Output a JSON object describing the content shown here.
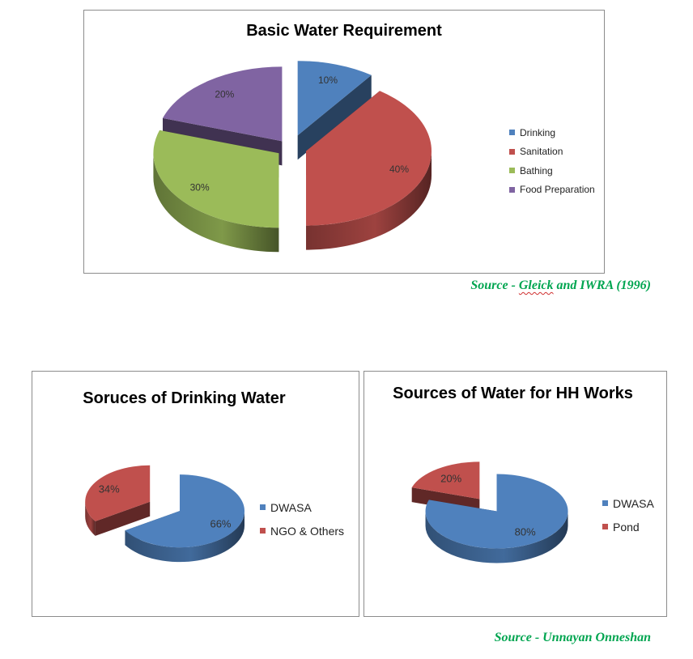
{
  "chart_data": [
    {
      "type": "pie",
      "title": "Basic Water Requirement",
      "categories": [
        "Drinking",
        "Sanitation",
        "Bathing",
        "Food Preparation"
      ],
      "values": [
        10,
        40,
        30,
        20
      ],
      "data_labels": [
        "10%",
        "40%",
        "30%",
        "20%"
      ],
      "colors": [
        "#4f81bd",
        "#c0504d",
        "#9bbb59",
        "#8064a2"
      ],
      "legend_position": "right",
      "style": "3d exploded pie"
    },
    {
      "type": "pie",
      "title": "Soruces of Drinking Water",
      "categories": [
        "DWASA",
        "NGO & Others"
      ],
      "values": [
        66,
        34
      ],
      "data_labels": [
        "66%",
        "34%"
      ],
      "colors": [
        "#4f81bd",
        "#c0504d"
      ],
      "legend_position": "right",
      "style": "3d exploded pie"
    },
    {
      "type": "pie",
      "title": "Sources of Water for HH Works",
      "categories": [
        "DWASA",
        "Pond"
      ],
      "values": [
        80,
        20
      ],
      "data_labels": [
        "80%",
        "20%"
      ],
      "colors": [
        "#4f81bd",
        "#c0504d"
      ],
      "legend_position": "right",
      "style": "3d exploded pie"
    }
  ],
  "sources": {
    "top_prefix": "Source - ",
    "top_author": "Gleick",
    "top_suffix": " and IWRA (1996)",
    "bottom": "Source - Unnayan Onneshan"
  }
}
